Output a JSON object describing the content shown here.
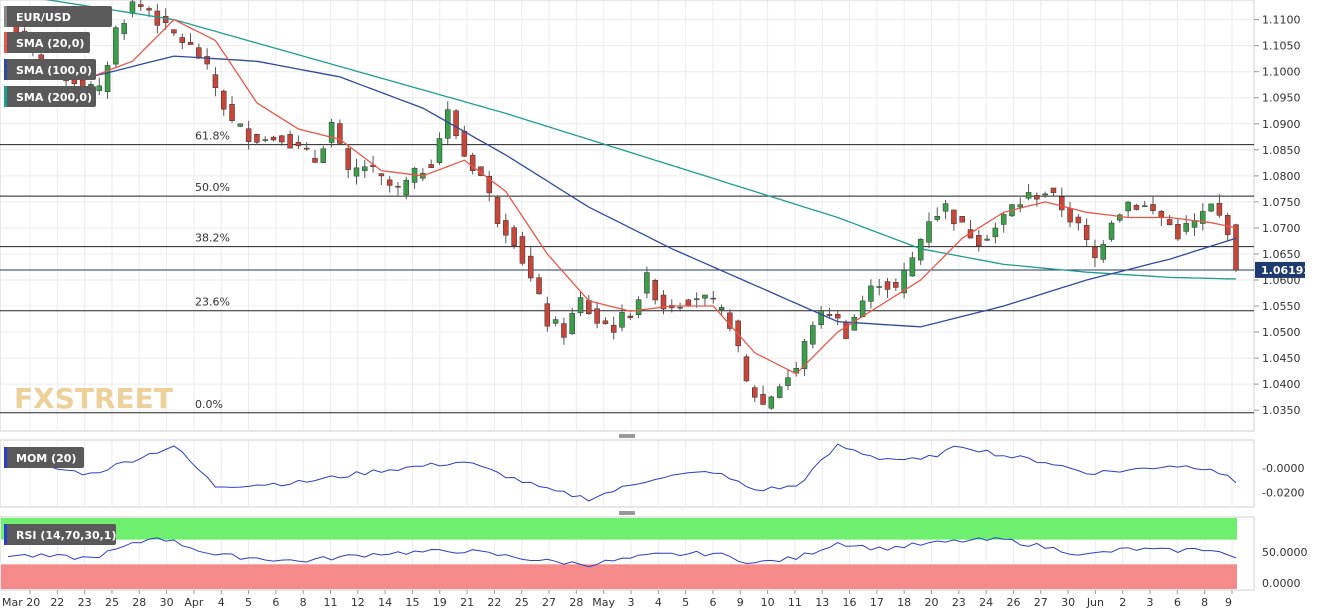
{
  "chart_data": {
    "type": "candlestick",
    "symbol": "EUR/USD",
    "watermark": "FXSTREET",
    "current_price": "1.06193",
    "price_axis": {
      "ylim": [
        1.031,
        1.113
      ],
      "ticks": [
        "1.1100",
        "1.1050",
        "1.1000",
        "1.0950",
        "1.0900",
        "1.0850",
        "1.0800",
        "1.0750",
        "1.0700",
        "1.0650",
        "1.0600",
        "1.0550",
        "1.0500",
        "1.0450",
        "1.0400",
        "1.0350"
      ]
    },
    "x_labels": [
      "Mar 20",
      "22",
      "23",
      "25",
      "28",
      "30",
      "Apr",
      "4",
      "5",
      "6",
      "8",
      "11",
      "12",
      "14",
      "15",
      "19",
      "21",
      "22",
      "25",
      "27",
      "28",
      "May",
      "3",
      "4",
      "5",
      "6",
      "9",
      "10",
      "11",
      "13",
      "16",
      "17",
      "18",
      "20",
      "23",
      "24",
      "26",
      "27",
      "30",
      "Jun",
      "2",
      "3",
      "6",
      "8",
      "9"
    ],
    "fibonacci": [
      {
        "label": "61.8%",
        "value": 1.086
      },
      {
        "label": "50.0%",
        "value": 1.0761
      },
      {
        "label": "38.2%",
        "value": 1.0664
      },
      {
        "label": "23.6%",
        "value": 1.0541
      },
      {
        "label": "0.0%",
        "value": 1.0345
      }
    ],
    "indicators": [
      {
        "name": "SMA (20,0)",
        "color": "#e8574a"
      },
      {
        "name": "SMA (100,0)",
        "color": "#2e4a9e"
      },
      {
        "name": "SMA (200,0)",
        "color": "#1e9e8e"
      }
    ],
    "price_keypoints": [
      [
        0,
        1.11
      ],
      [
        3,
        1.103
      ],
      [
        6,
        1.1
      ],
      [
        9,
        1.0975
      ],
      [
        11,
        1.096
      ],
      [
        13,
        1.108
      ],
      [
        15,
        1.113
      ],
      [
        17,
        1.112
      ],
      [
        19,
        1.108
      ],
      [
        21,
        1.106
      ],
      [
        23,
        1.103
      ],
      [
        25,
        1.097
      ],
      [
        27,
        1.09
      ],
      [
        29,
        1.088
      ],
      [
        31,
        1.087
      ],
      [
        33,
        1.088
      ],
      [
        35,
        1.085
      ],
      [
        37,
        1.083
      ],
      [
        39,
        1.09
      ],
      [
        41,
        1.08
      ],
      [
        43,
        1.082
      ],
      [
        45,
        1.079
      ],
      [
        47,
        1.077
      ],
      [
        49,
        1.08
      ],
      [
        51,
        1.083
      ],
      [
        53,
        1.092
      ],
      [
        55,
        1.084
      ],
      [
        57,
        1.08
      ],
      [
        59,
        1.072
      ],
      [
        61,
        1.068
      ],
      [
        63,
        1.06
      ],
      [
        65,
        1.052
      ],
      [
        67,
        1.05
      ],
      [
        69,
        1.056
      ],
      [
        71,
        1.052
      ],
      [
        73,
        1.051
      ],
      [
        75,
        1.054
      ],
      [
        77,
        1.06
      ],
      [
        79,
        1.055
      ],
      [
        81,
        1.056
      ],
      [
        83,
        1.057
      ],
      [
        85,
        1.055
      ],
      [
        87,
        1.052
      ],
      [
        89,
        1.04
      ],
      [
        91,
        1.036
      ],
      [
        93,
        1.04
      ],
      [
        95,
        1.043
      ],
      [
        97,
        1.052
      ],
      [
        99,
        1.054
      ],
      [
        101,
        1.05
      ],
      [
        103,
        1.056
      ],
      [
        105,
        1.06
      ],
      [
        107,
        1.058
      ],
      [
        109,
        1.064
      ],
      [
        111,
        1.072
      ],
      [
        113,
        1.074
      ],
      [
        115,
        1.07
      ],
      [
        117,
        1.068
      ],
      [
        119,
        1.07
      ],
      [
        121,
        1.074
      ],
      [
        123,
        1.076
      ],
      [
        125,
        1.077
      ],
      [
        127,
        1.074
      ],
      [
        129,
        1.07
      ],
      [
        131,
        1.064
      ],
      [
        133,
        1.072
      ],
      [
        135,
        1.075
      ],
      [
        137,
        1.074
      ],
      [
        139,
        1.072
      ],
      [
        141,
        1.069
      ],
      [
        143,
        1.071
      ],
      [
        145,
        1.074
      ],
      [
        147,
        1.07
      ],
      [
        148,
        1.0619
      ]
    ],
    "sma20_keypoints": [
      [
        10,
        1.099
      ],
      [
        15,
        1.102
      ],
      [
        20,
        1.11
      ],
      [
        25,
        1.106
      ],
      [
        30,
        1.094
      ],
      [
        35,
        1.089
      ],
      [
        40,
        1.087
      ],
      [
        45,
        1.081
      ],
      [
        50,
        1.08
      ],
      [
        55,
        1.083
      ],
      [
        60,
        1.077
      ],
      [
        65,
        1.065
      ],
      [
        70,
        1.056
      ],
      [
        75,
        1.054
      ],
      [
        80,
        1.055
      ],
      [
        85,
        1.055
      ],
      [
        90,
        1.046
      ],
      [
        95,
        1.042
      ],
      [
        100,
        1.05
      ],
      [
        105,
        1.055
      ],
      [
        110,
        1.06
      ],
      [
        115,
        1.068
      ],
      [
        120,
        1.073
      ],
      [
        125,
        1.075
      ],
      [
        130,
        1.073
      ],
      [
        135,
        1.072
      ],
      [
        140,
        1.072
      ],
      [
        145,
        1.071
      ],
      [
        148,
        1.07
      ]
    ],
    "sma100_keypoints": [
      [
        0,
        1.1
      ],
      [
        10,
        1.099
      ],
      [
        20,
        1.103
      ],
      [
        30,
        1.102
      ],
      [
        40,
        1.099
      ],
      [
        50,
        1.093
      ],
      [
        60,
        1.084
      ],
      [
        70,
        1.074
      ],
      [
        80,
        1.066
      ],
      [
        90,
        1.059
      ],
      [
        100,
        1.052
      ],
      [
        110,
        1.051
      ],
      [
        120,
        1.055
      ],
      [
        130,
        1.06
      ],
      [
        140,
        1.064
      ],
      [
        148,
        1.068
      ]
    ],
    "sma200_keypoints": [
      [
        0,
        1.115
      ],
      [
        20,
        1.11
      ],
      [
        40,
        1.101
      ],
      [
        60,
        1.092
      ],
      [
        80,
        1.082
      ],
      [
        100,
        1.072
      ],
      [
        110,
        1.066
      ],
      [
        120,
        1.063
      ],
      [
        130,
        1.0615
      ],
      [
        140,
        1.0605
      ],
      [
        148,
        1.0602
      ]
    ],
    "momentum": {
      "name": "MOM (20)",
      "ticks": [
        "-0.0000",
        "-0.0200"
      ],
      "ylim": [
        -0.031,
        0.021
      ],
      "keypoints": [
        [
          0,
          0.005
        ],
        [
          10,
          -0.005
        ],
        [
          20,
          0.018
        ],
        [
          25,
          -0.015
        ],
        [
          35,
          -0.012
        ],
        [
          45,
          -0.002
        ],
        [
          55,
          0.005
        ],
        [
          65,
          -0.018
        ],
        [
          70,
          -0.025
        ],
        [
          78,
          -0.008
        ],
        [
          85,
          -0.003
        ],
        [
          90,
          -0.018
        ],
        [
          95,
          -0.015
        ],
        [
          100,
          0.018
        ],
        [
          105,
          0.008
        ],
        [
          110,
          0.006
        ],
        [
          115,
          0.018
        ],
        [
          120,
          0.01
        ],
        [
          125,
          0.005
        ],
        [
          130,
          -0.004
        ],
        [
          135,
          -0.002
        ],
        [
          140,
          0.002
        ],
        [
          145,
          0.0
        ],
        [
          148,
          -0.012
        ]
      ]
    },
    "rsi": {
      "name": "RSI (14,70,30,1)",
      "ticks": [
        "50.0000",
        "0.0000"
      ],
      "ylim": [
        -10,
        105
      ],
      "overbought": 70,
      "oversold": 30,
      "keypoints": [
        [
          0,
          45
        ],
        [
          10,
          40
        ],
        [
          18,
          75
        ],
        [
          25,
          45
        ],
        [
          35,
          35
        ],
        [
          45,
          48
        ],
        [
          55,
          52
        ],
        [
          65,
          35
        ],
        [
          70,
          30
        ],
        [
          78,
          45
        ],
        [
          85,
          48
        ],
        [
          90,
          32
        ],
        [
          95,
          40
        ],
        [
          100,
          65
        ],
        [
          105,
          55
        ],
        [
          110,
          62
        ],
        [
          115,
          68
        ],
        [
          120,
          70
        ],
        [
          125,
          58
        ],
        [
          130,
          45
        ],
        [
          135,
          55
        ],
        [
          140,
          52
        ],
        [
          145,
          55
        ],
        [
          148,
          40
        ]
      ]
    }
  }
}
